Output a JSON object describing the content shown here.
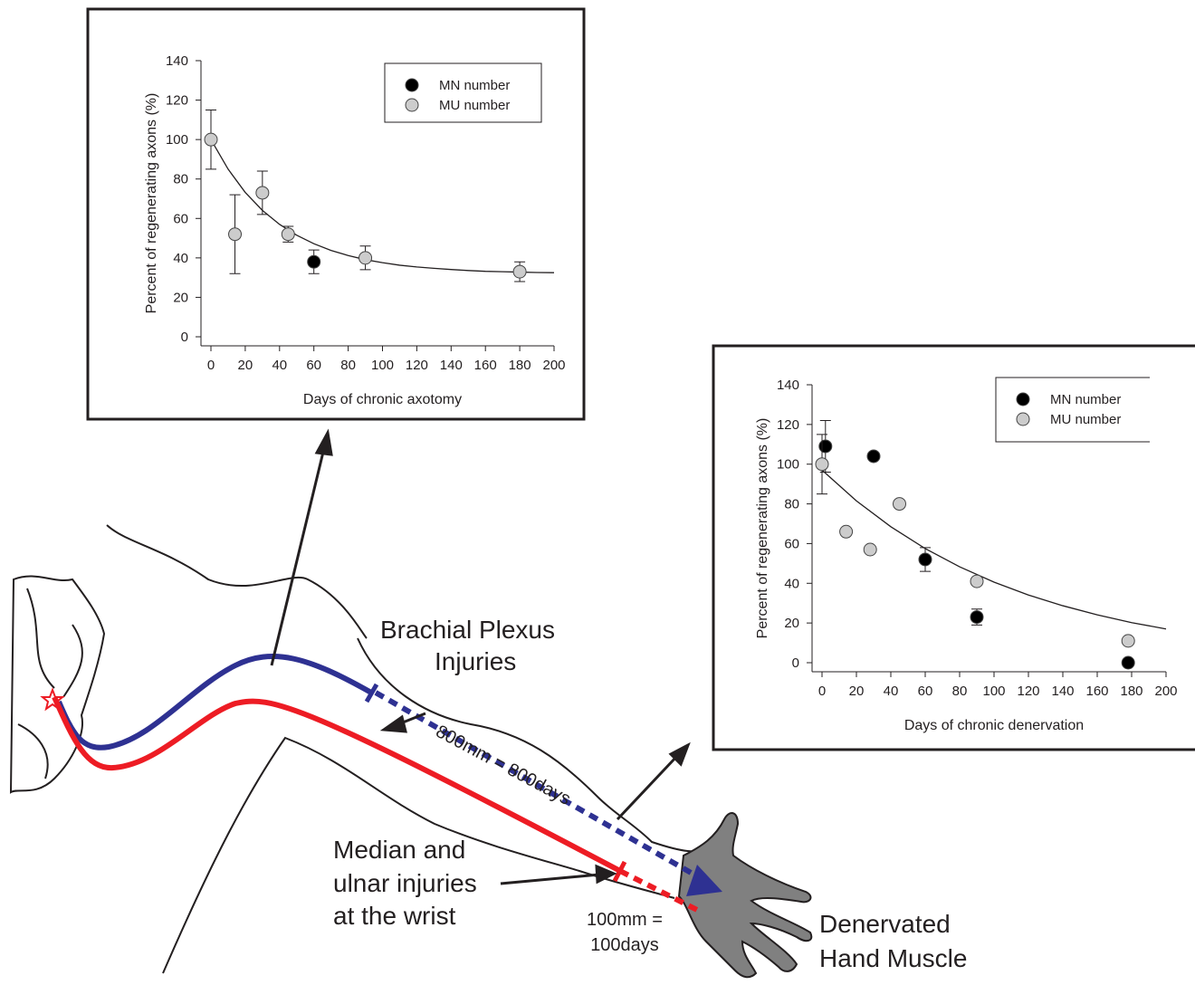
{
  "chart_data": [
    {
      "type": "scatter",
      "xlabel": "Days of chronic axotomy",
      "ylabel": "Percent of regenerating axons (%)",
      "xlim": [
        0,
        200
      ],
      "xticks": [
        0,
        20,
        40,
        60,
        80,
        100,
        120,
        140,
        160,
        180,
        200
      ],
      "ylim": [
        0,
        140
      ],
      "yticks": [
        0,
        20,
        40,
        60,
        80,
        100,
        120,
        140
      ],
      "legend": "upper right",
      "series": [
        {
          "name": "MN number",
          "color": "#000000",
          "x": [
            60
          ],
          "values": [
            38
          ],
          "errors": [
            6
          ]
        },
        {
          "name": "MU number",
          "color": "#cccccc",
          "x": [
            0,
            14,
            30,
            45,
            90,
            180
          ],
          "values": [
            100,
            52,
            73,
            52,
            40,
            33
          ],
          "errors": [
            15,
            20,
            11,
            4,
            6,
            5
          ]
        }
      ],
      "fit": {
        "x": [
          0,
          10,
          20,
          30,
          40,
          50,
          60,
          70,
          80,
          90,
          100,
          110,
          120,
          130,
          140,
          150,
          160,
          170,
          180,
          190,
          200
        ],
        "values": [
          100,
          85,
          73.2,
          64.1,
          57,
          51.5,
          47.2,
          43.8,
          41.2,
          39.1,
          37.6,
          36.3,
          35.4,
          34.7,
          34.1,
          33.6,
          33.2,
          33,
          32.8,
          32.6,
          32.5
        ]
      }
    },
    {
      "type": "scatter",
      "xlabel": "Days of chronic denervation",
      "ylabel": "Percent of regenerating axons (%)",
      "xlim": [
        0,
        200
      ],
      "xticks": [
        0,
        20,
        40,
        60,
        80,
        100,
        120,
        140,
        160,
        180,
        200
      ],
      "ylim": [
        0,
        140
      ],
      "yticks": [
        0,
        20,
        40,
        60,
        80,
        100,
        120,
        140
      ],
      "legend": "upper right",
      "series": [
        {
          "name": "MN number",
          "color": "#000000",
          "x": [
            2,
            30,
            60,
            90,
            178
          ],
          "values": [
            109,
            104,
            52,
            23,
            0
          ],
          "errors": [
            13,
            null,
            6,
            4,
            null
          ]
        },
        {
          "name": "MU number",
          "color": "#cccccc",
          "x": [
            0,
            14,
            28,
            45,
            90,
            178
          ],
          "values": [
            100,
            66,
            57,
            80,
            41,
            11
          ],
          "errors": [
            15,
            null,
            null,
            null,
            null,
            null
          ]
        }
      ],
      "fit": {
        "x": [
          0,
          20,
          40,
          60,
          80,
          100,
          120,
          140,
          160,
          180,
          200
        ],
        "values": [
          97,
          81.5,
          68.5,
          57.5,
          48.3,
          40.6,
          34.1,
          28.7,
          24.1,
          20.2,
          17
        ]
      }
    }
  ],
  "diagram": {
    "brachial_plexus": [
      "Brachial Plexus",
      "Injuries"
    ],
    "distance_long": "800mm = 800days",
    "median_ulnar": [
      "Median and",
      "ulnar injuries",
      "at the wrist"
    ],
    "distance_short": [
      "100mm =",
      "100days"
    ],
    "hand": [
      "Denervated",
      "Hand Muscle"
    ]
  }
}
